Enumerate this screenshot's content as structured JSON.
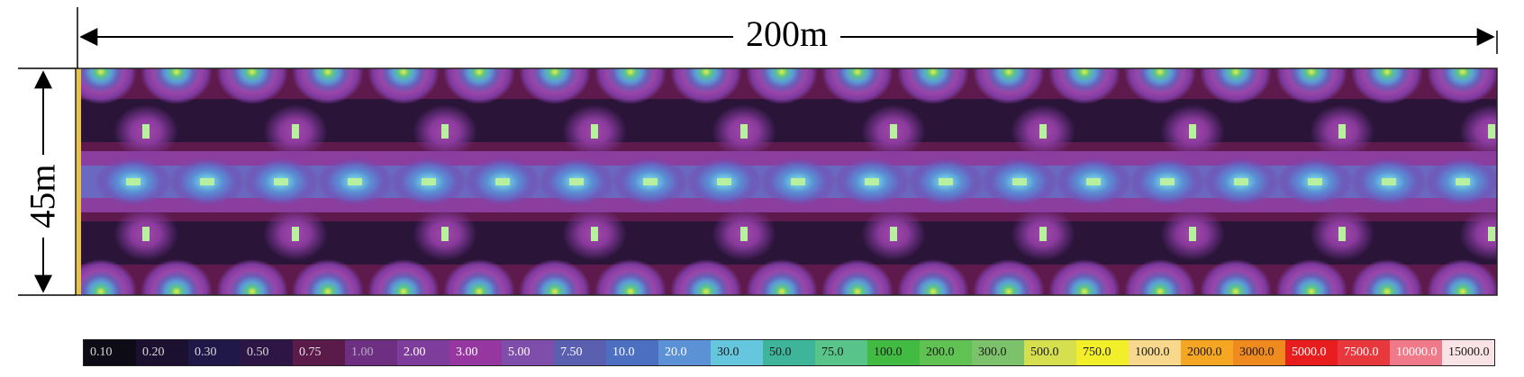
{
  "dimensions": {
    "width_label": "200m",
    "height_label": "45m"
  },
  "colorbar": {
    "stops": [
      {
        "label": "0.10",
        "color": "#0d0b16",
        "text": "#d8d8d8"
      },
      {
        "label": "0.20",
        "color": "#1c1030",
        "text": "#d8d8d8"
      },
      {
        "label": "0.30",
        "color": "#1f1848",
        "text": "#d8d8d8"
      },
      {
        "label": "0.50",
        "color": "#2d1545",
        "text": "#d8d8d8"
      },
      {
        "label": "0.75",
        "color": "#5a1a4a",
        "text": "#e6e6e6"
      },
      {
        "label": "1.00",
        "color": "#6e2e82",
        "text": "#b9a9cc"
      },
      {
        "label": "2.00",
        "color": "#7f3d9b",
        "text": "#ffffff"
      },
      {
        "label": "3.00",
        "color": "#95379e",
        "text": "#ffffff"
      },
      {
        "label": "5.00",
        "color": "#7e4eaa",
        "text": "#ffffff"
      },
      {
        "label": "7.50",
        "color": "#5a5fb0",
        "text": "#ffffff"
      },
      {
        "label": "10.0",
        "color": "#4c6fc2",
        "text": "#ffffff"
      },
      {
        "label": "20.0",
        "color": "#5b92d6",
        "text": "#ffffff"
      },
      {
        "label": "30.0",
        "color": "#66c6de",
        "text": "#1a1a1a"
      },
      {
        "label": "50.0",
        "color": "#3eb49b",
        "text": "#1a1a1a"
      },
      {
        "label": "75.0",
        "color": "#58c48a",
        "text": "#1a1a1a"
      },
      {
        "label": "100.0",
        "color": "#41bb41",
        "text": "#1a1a1a"
      },
      {
        "label": "200.0",
        "color": "#5fc252",
        "text": "#1a1a1a"
      },
      {
        "label": "300.0",
        "color": "#7cc26a",
        "text": "#1a1a1a"
      },
      {
        "label": "500.0",
        "color": "#d6e04e",
        "text": "#1a1a1a"
      },
      {
        "label": "750.0",
        "color": "#f2ef2a",
        "text": "#1a1a1a"
      },
      {
        "label": "1000.0",
        "color": "#f7d88c",
        "text": "#1a1a1a"
      },
      {
        "label": "2000.0",
        "color": "#f5a623",
        "text": "#1a1a1a"
      },
      {
        "label": "3000.0",
        "color": "#ef8a1e",
        "text": "#1a1a1a"
      },
      {
        "label": "5000.0",
        "color": "#e81d1d",
        "text": "#ffffff"
      },
      {
        "label": "7500.0",
        "color": "#e8383e",
        "text": "#ffffff"
      },
      {
        "label": "10000.0",
        "color": "#f07a8a",
        "text": "#ffffff"
      },
      {
        "label": "15000.0",
        "color": "#fae3e6",
        "text": "#1a1a1a"
      }
    ]
  }
}
